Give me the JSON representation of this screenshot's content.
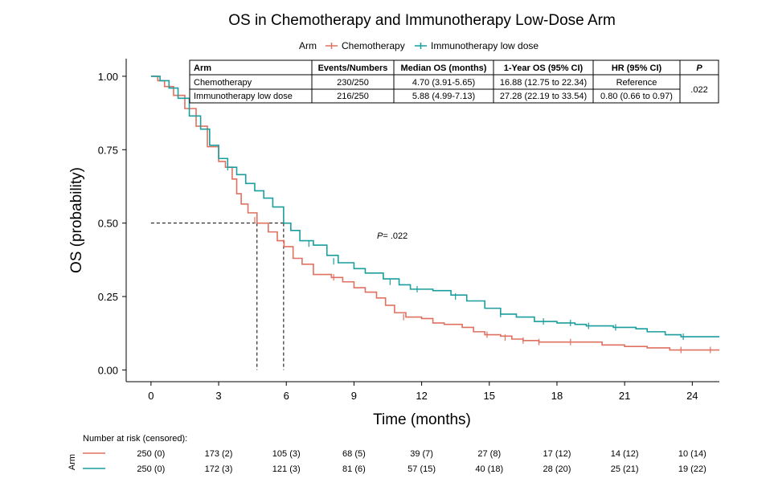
{
  "chart_data": {
    "type": "line",
    "title": "OS in Chemotherapy and Immunotherapy Low-Dose Arm",
    "xlabel": "Time (months)",
    "ylabel": "OS (probability)",
    "xlim": [
      -1.1,
      25.2
    ],
    "ylim": [
      -0.04,
      1.06
    ],
    "x_ticks": [
      0,
      3,
      6,
      9,
      12,
      15,
      18,
      21,
      24
    ],
    "x_tick_labels": [
      "0",
      "3",
      "6",
      "9",
      "12",
      "15",
      "18",
      "21",
      "24"
    ],
    "y_ticks": [
      0,
      0.25,
      0.5,
      0.75,
      1.0
    ],
    "y_tick_labels": [
      "0.00",
      "0.25",
      "0.50",
      "0.75",
      "1.00"
    ],
    "legend": {
      "title": "Arm",
      "placement": "top",
      "entries": [
        "Chemotherapy",
        "Immunotherapy low dose"
      ]
    },
    "series": [
      {
        "name": "Chemotherapy",
        "color": "#e07060",
        "median_os": 4.7,
        "points": [
          [
            0,
            1.0
          ],
          [
            0.3,
            0.985
          ],
          [
            0.6,
            0.965
          ],
          [
            1.0,
            0.935
          ],
          [
            1.5,
            0.89
          ],
          [
            2.0,
            0.83
          ],
          [
            2.5,
            0.76
          ],
          [
            3.0,
            0.71
          ],
          [
            3.3,
            0.69
          ],
          [
            3.6,
            0.65
          ],
          [
            3.8,
            0.6
          ],
          [
            4.0,
            0.565
          ],
          [
            4.3,
            0.535
          ],
          [
            4.7,
            0.5
          ],
          [
            5.2,
            0.47
          ],
          [
            5.6,
            0.44
          ],
          [
            5.9,
            0.42
          ],
          [
            6.3,
            0.38
          ],
          [
            6.7,
            0.36
          ],
          [
            7.2,
            0.325
          ],
          [
            8.0,
            0.315
          ],
          [
            8.5,
            0.3
          ],
          [
            9.0,
            0.28
          ],
          [
            9.5,
            0.265
          ],
          [
            10.0,
            0.245
          ],
          [
            10.4,
            0.22
          ],
          [
            10.8,
            0.195
          ],
          [
            11.3,
            0.18
          ],
          [
            12.0,
            0.175
          ],
          [
            12.5,
            0.16
          ],
          [
            13.0,
            0.155
          ],
          [
            13.8,
            0.145
          ],
          [
            14.3,
            0.13
          ],
          [
            14.8,
            0.12
          ],
          [
            15.5,
            0.115
          ],
          [
            16.0,
            0.105
          ],
          [
            16.5,
            0.1
          ],
          [
            17.2,
            0.095
          ],
          [
            18.0,
            0.095
          ],
          [
            19.5,
            0.095
          ],
          [
            20.0,
            0.085
          ],
          [
            21.0,
            0.08
          ],
          [
            22.0,
            0.075
          ],
          [
            23.0,
            0.068
          ],
          [
            25.2,
            0.068
          ]
        ],
        "censor_marks": [
          [
            4.6,
            0.51
          ],
          [
            8.1,
            0.315
          ],
          [
            11.2,
            0.18
          ],
          [
            14.9,
            0.12
          ],
          [
            15.7,
            0.11
          ],
          [
            16.5,
            0.1
          ],
          [
            17.2,
            0.095
          ],
          [
            18.6,
            0.095
          ],
          [
            23.5,
            0.068
          ],
          [
            24.8,
            0.068
          ]
        ]
      },
      {
        "name": "Immunotherapy low dose",
        "color": "#1a9e9e",
        "median_os": 5.88,
        "points": [
          [
            0,
            1.0
          ],
          [
            0.4,
            0.985
          ],
          [
            0.8,
            0.96
          ],
          [
            1.2,
            0.925
          ],
          [
            1.7,
            0.865
          ],
          [
            2.2,
            0.82
          ],
          [
            2.6,
            0.765
          ],
          [
            3.0,
            0.72
          ],
          [
            3.4,
            0.69
          ],
          [
            3.8,
            0.665
          ],
          [
            4.2,
            0.635
          ],
          [
            4.6,
            0.61
          ],
          [
            5.0,
            0.585
          ],
          [
            5.4,
            0.555
          ],
          [
            5.88,
            0.5
          ],
          [
            6.2,
            0.475
          ],
          [
            6.6,
            0.44
          ],
          [
            7.2,
            0.425
          ],
          [
            7.8,
            0.39
          ],
          [
            8.3,
            0.365
          ],
          [
            9.0,
            0.345
          ],
          [
            9.5,
            0.33
          ],
          [
            10.3,
            0.31
          ],
          [
            11.0,
            0.29
          ],
          [
            11.5,
            0.275
          ],
          [
            12.5,
            0.27
          ],
          [
            13.3,
            0.255
          ],
          [
            14.0,
            0.235
          ],
          [
            14.8,
            0.21
          ],
          [
            15.5,
            0.19
          ],
          [
            16.2,
            0.18
          ],
          [
            17.0,
            0.165
          ],
          [
            18.0,
            0.16
          ],
          [
            18.8,
            0.155
          ],
          [
            19.3,
            0.15
          ],
          [
            20.5,
            0.145
          ],
          [
            21.5,
            0.14
          ],
          [
            22.0,
            0.13
          ],
          [
            22.8,
            0.12
          ],
          [
            23.5,
            0.113
          ],
          [
            25.2,
            0.113
          ]
        ],
        "censor_marks": [
          [
            3.4,
            0.69
          ],
          [
            7.0,
            0.43
          ],
          [
            8.1,
            0.37
          ],
          [
            10.6,
            0.3
          ],
          [
            11.8,
            0.275
          ],
          [
            13.5,
            0.25
          ],
          [
            15.5,
            0.19
          ],
          [
            17.4,
            0.165
          ],
          [
            18.6,
            0.16
          ],
          [
            19.4,
            0.15
          ],
          [
            20.6,
            0.145
          ],
          [
            23.6,
            0.113
          ]
        ]
      }
    ],
    "annotations": [
      {
        "type": "median_guide",
        "median": 4.7,
        "level": 0.5
      },
      {
        "type": "median_guide",
        "median": 5.88,
        "level": 0.5
      }
    ]
  },
  "legend_colors": {
    "Chemotherapy": "#e07060",
    "Immunotherapy low dose": "#1a9e9e"
  },
  "p_annotation": {
    "label": "P",
    "value": "= .022"
  },
  "summary_table": {
    "headers": [
      "Arm",
      "Events/Numbers",
      "Median OS (months)",
      "1-Year OS (95% CI)",
      "HR (95% CI)",
      "P"
    ],
    "rows": [
      [
        "Chemotherapy",
        "230/250",
        "4.70 (3.91-5.65)",
        "16.88 (12.75 to 22.34)",
        "Reference"
      ],
      [
        "Immunotherapy low dose",
        "216/250",
        "5.88 (4.99-7.13)",
        "27.28 (22.19 to 33.54)",
        "0.80 (0.66 to 0.97)"
      ]
    ],
    "p_value": ".022"
  },
  "risk_table": {
    "title": "Number at risk (censored):",
    "y_label": "Arm",
    "times": [
      0,
      3,
      6,
      9,
      12,
      15,
      18,
      21,
      24
    ],
    "rows": [
      {
        "name": "Chemotherapy",
        "color": "#e07060",
        "values": [
          "250 (0)",
          "173 (2)",
          "105 (3)",
          "68 (5)",
          "39 (7)",
          "27 (8)",
          "17 (12)",
          "14 (12)",
          "10 (14)"
        ]
      },
      {
        "name": "Immunotherapy low dose",
        "color": "#1a9e9e",
        "values": [
          "250 (0)",
          "172 (3)",
          "121 (3)",
          "81 (6)",
          "57 (15)",
          "40 (18)",
          "28 (20)",
          "25 (21)",
          "19 (22)"
        ]
      }
    ]
  }
}
